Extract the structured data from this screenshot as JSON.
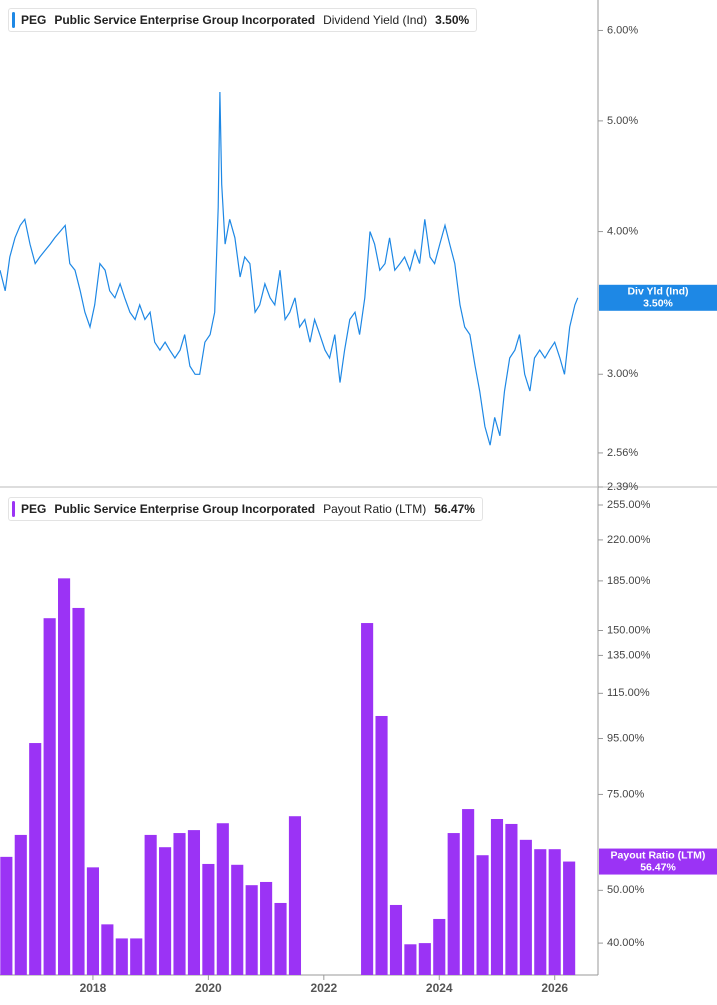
{
  "chart_data": [
    {
      "type": "line",
      "ticker": "PEG",
      "company": "Public Service Enterprise Group Incorporated",
      "log": true,
      "badge_label": "Div Yld (Ind)",
      "current": {
        "value": 3.5,
        "label": "3.50%"
      },
      "xlim": [
        2016.39,
        2026.75
      ],
      "ylim": [
        2.39,
        6.38
      ],
      "yticks": [
        {
          "value": 6,
          "label": "6.00%"
        },
        {
          "value": 5,
          "label": "5.00%"
        },
        {
          "value": 4,
          "label": "4.00%"
        },
        {
          "value": 3,
          "label": "3.00%"
        },
        {
          "value": 2.56,
          "label": "2.56%"
        },
        {
          "value": 2.39,
          "label": "2.39%"
        }
      ],
      "series": [
        {
          "name": "Dividend Yield (Ind)",
          "color": "#1e88e5",
          "x": [
            2016.39,
            2016.48,
            2016.56,
            2016.65,
            2016.74,
            2016.82,
            2016.91,
            2017.0,
            2017.08,
            2017.17,
            2017.26,
            2017.34,
            2017.43,
            2017.52,
            2017.6,
            2017.69,
            2017.78,
            2017.86,
            2017.95,
            2018.03,
            2018.12,
            2018.21,
            2018.29,
            2018.38,
            2018.47,
            2018.55,
            2018.64,
            2018.73,
            2018.81,
            2018.9,
            2018.99,
            2019.07,
            2019.16,
            2019.25,
            2019.33,
            2019.42,
            2019.51,
            2019.59,
            2019.68,
            2019.77,
            2019.85,
            2019.94,
            2020.03,
            2020.11,
            2020.17,
            2020.2,
            2020.23,
            2020.29,
            2020.37,
            2020.46,
            2020.55,
            2020.63,
            2020.72,
            2020.81,
            2020.89,
            2020.98,
            2021.07,
            2021.15,
            2021.24,
            2021.33,
            2021.41,
            2021.5,
            2021.58,
            2021.67,
            2021.76,
            2021.84,
            2021.93,
            2022.02,
            2022.1,
            2022.19,
            2022.28,
            2022.36,
            2022.45,
            2022.54,
            2022.62,
            2022.71,
            2022.8,
            2022.88,
            2022.97,
            2023.06,
            2023.14,
            2023.23,
            2023.32,
            2023.4,
            2023.49,
            2023.58,
            2023.66,
            2023.75,
            2023.84,
            2023.92,
            2024.01,
            2024.1,
            2024.18,
            2024.27,
            2024.36,
            2024.44,
            2024.53,
            2024.62,
            2024.7,
            2024.79,
            2024.88,
            2024.96,
            2025.05,
            2025.13,
            2025.22,
            2025.31,
            2025.39,
            2025.48,
            2025.57,
            2025.65,
            2025.74,
            2025.83,
            2025.91,
            2026.0,
            2026.09,
            2026.17,
            2026.26,
            2026.35,
            2026.4
          ],
          "values": [
            3.7,
            3.55,
            3.8,
            3.95,
            4.05,
            4.1,
            3.9,
            3.75,
            3.8,
            3.85,
            3.9,
            3.95,
            4.0,
            4.05,
            3.75,
            3.7,
            3.55,
            3.4,
            3.3,
            3.45,
            3.75,
            3.7,
            3.55,
            3.5,
            3.6,
            3.5,
            3.4,
            3.35,
            3.45,
            3.35,
            3.4,
            3.2,
            3.15,
            3.2,
            3.15,
            3.1,
            3.15,
            3.25,
            3.05,
            3.0,
            3.0,
            3.2,
            3.25,
            3.4,
            4.2,
            5.3,
            4.4,
            3.9,
            4.1,
            3.95,
            3.65,
            3.8,
            3.75,
            3.4,
            3.45,
            3.6,
            3.5,
            3.45,
            3.7,
            3.35,
            3.4,
            3.5,
            3.3,
            3.35,
            3.2,
            3.35,
            3.25,
            3.15,
            3.1,
            3.25,
            2.95,
            3.15,
            3.35,
            3.4,
            3.25,
            3.5,
            4.0,
            3.9,
            3.7,
            3.75,
            3.95,
            3.7,
            3.75,
            3.8,
            3.7,
            3.85,
            3.75,
            4.1,
            3.8,
            3.75,
            3.9,
            4.05,
            3.9,
            3.75,
            3.45,
            3.3,
            3.25,
            3.05,
            2.9,
            2.7,
            2.6,
            2.75,
            2.65,
            2.9,
            3.1,
            3.15,
            3.25,
            3.0,
            2.9,
            3.1,
            3.15,
            3.1,
            3.15,
            3.2,
            3.1,
            3.0,
            3.3,
            3.45,
            3.5
          ]
        }
      ]
    },
    {
      "type": "bar",
      "ticker": "PEG",
      "company": "Public Service Enterprise Group Incorporated",
      "log": true,
      "badge_label": "Payout Ratio (LTM)",
      "current": {
        "value": 56.47,
        "label": "56.47%"
      },
      "xlim": [
        2016.39,
        2026.75
      ],
      "ylim": [
        35.4,
        266
      ],
      "xticks": [
        2018,
        2020,
        2022,
        2024,
        2026
      ],
      "yticks": [
        {
          "value": 255,
          "label": "255.00%"
        },
        {
          "value": 220,
          "label": "220.00%"
        },
        {
          "value": 185,
          "label": "185.00%"
        },
        {
          "value": 150,
          "label": "150.00%"
        },
        {
          "value": 135,
          "label": "135.00%"
        },
        {
          "value": 115,
          "label": "115.00%"
        },
        {
          "value": 95,
          "label": "95.00%"
        },
        {
          "value": 75,
          "label": "75.00%"
        },
        {
          "value": 50,
          "label": "50.00%"
        },
        {
          "value": 40,
          "label": "40.00%"
        }
      ],
      "series": [
        {
          "name": "Payout Ratio (LTM)",
          "color": "#9b33f5",
          "x": [
            2016.5,
            2016.75,
            2017,
            2017.25,
            2017.5,
            2017.75,
            2018,
            2018.25,
            2018.5,
            2018.75,
            2019,
            2019.25,
            2019.5,
            2019.75,
            2020,
            2020.25,
            2020.5,
            2020.75,
            2021,
            2021.25,
            2021.5,
            2022.75,
            2023,
            2023.25,
            2023.5,
            2023.75,
            2024,
            2024.25,
            2024.5,
            2024.75,
            2025,
            2025.25,
            2025.5,
            2025.75,
            2026,
            2026.25
          ],
          "values": [
            57.6,
            63.2,
            93.2,
            158,
            187,
            165,
            55.1,
            43.3,
            40.8,
            40.8,
            63.2,
            60.0,
            63.7,
            64.5,
            55.9,
            66.4,
            55.7,
            51.1,
            51.8,
            47.4,
            68.4,
            154.8,
            104.5,
            47.0,
            39.8,
            40.0,
            44.3,
            63.7,
            70.5,
            58.0,
            67.6,
            66.2,
            61.9,
            59.5,
            59.5,
            56.47
          ]
        }
      ]
    }
  ]
}
